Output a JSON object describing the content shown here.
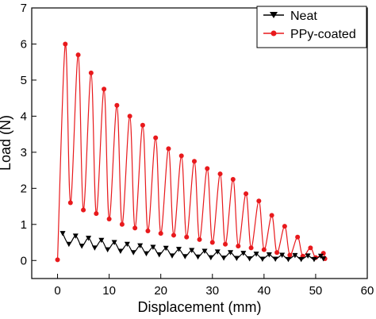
{
  "chart_data": {
    "type": "line",
    "xlabel": "Displacement (mm)",
    "ylabel": "Load (N)",
    "xlim": [
      -5,
      60
    ],
    "ylim": [
      -0.5,
      7
    ],
    "xticks": [
      0,
      10,
      20,
      30,
      40,
      50,
      60
    ],
    "yticks": [
      0,
      1,
      2,
      3,
      4,
      5,
      6,
      7
    ],
    "x_tick_labels": [
      "0",
      "10",
      "20",
      "30",
      "40",
      "50",
      "60"
    ],
    "y_tick_labels": [
      "0",
      "1",
      "2",
      "3",
      "4",
      "5",
      "6",
      "7"
    ],
    "grid": false,
    "legend_position": "top-right",
    "series": [
      {
        "name": "Neat",
        "color": "#000000",
        "marker": "triangle-down",
        "peaks": [
          [
            1.0,
            0.75
          ],
          [
            3.5,
            0.68
          ],
          [
            6.0,
            0.62
          ],
          [
            8.5,
            0.56
          ],
          [
            11.0,
            0.5
          ],
          [
            13.5,
            0.45
          ],
          [
            16.0,
            0.41
          ],
          [
            18.5,
            0.37
          ],
          [
            21.0,
            0.34
          ],
          [
            23.5,
            0.31
          ],
          [
            26.0,
            0.28
          ],
          [
            28.5,
            0.26
          ],
          [
            31.0,
            0.24
          ],
          [
            33.5,
            0.22
          ],
          [
            36.0,
            0.2
          ],
          [
            38.5,
            0.18
          ],
          [
            41.0,
            0.16
          ],
          [
            43.5,
            0.15
          ],
          [
            46.0,
            0.14
          ],
          [
            48.5,
            0.13
          ],
          [
            51.0,
            0.12
          ]
        ],
        "valleys": [
          [
            2.2,
            0.45
          ],
          [
            4.7,
            0.4
          ],
          [
            7.2,
            0.35
          ],
          [
            9.7,
            0.3
          ],
          [
            12.2,
            0.26
          ],
          [
            14.7,
            0.22
          ],
          [
            17.2,
            0.19
          ],
          [
            19.7,
            0.16
          ],
          [
            22.2,
            0.13
          ],
          [
            24.7,
            0.11
          ],
          [
            27.2,
            0.1
          ],
          [
            29.7,
            0.08
          ],
          [
            32.2,
            0.07
          ],
          [
            34.7,
            0.06
          ],
          [
            37.2,
            0.05
          ],
          [
            39.7,
            0.04
          ],
          [
            42.2,
            0.04
          ],
          [
            44.7,
            0.03
          ],
          [
            47.2,
            0.03
          ],
          [
            49.7,
            0.03
          ],
          [
            51.5,
            0.05
          ]
        ]
      },
      {
        "name": "PPy-coated",
        "color": "#e8191c",
        "marker": "circle",
        "start": [
          0.0,
          0.02
        ],
        "peaks": [
          [
            1.5,
            6.0
          ],
          [
            4.0,
            5.7
          ],
          [
            6.5,
            5.2
          ],
          [
            9.0,
            4.75
          ],
          [
            11.5,
            4.3
          ],
          [
            14.0,
            4.0
          ],
          [
            16.5,
            3.75
          ],
          [
            19.0,
            3.4
          ],
          [
            21.5,
            3.1
          ],
          [
            24.0,
            2.9
          ],
          [
            26.5,
            2.75
          ],
          [
            29.0,
            2.55
          ],
          [
            31.5,
            2.4
          ],
          [
            34.0,
            2.25
          ],
          [
            36.5,
            1.85
          ],
          [
            39.0,
            1.65
          ],
          [
            41.5,
            1.25
          ],
          [
            44.0,
            0.95
          ],
          [
            46.5,
            0.65
          ],
          [
            49.0,
            0.35
          ],
          [
            51.5,
            0.2
          ]
        ],
        "valleys": [
          [
            2.5,
            1.6
          ],
          [
            5.0,
            1.4
          ],
          [
            7.5,
            1.3
          ],
          [
            10.0,
            1.15
          ],
          [
            12.5,
            1.0
          ],
          [
            15.0,
            0.9
          ],
          [
            17.5,
            0.82
          ],
          [
            20.0,
            0.75
          ],
          [
            22.5,
            0.7
          ],
          [
            25.0,
            0.65
          ],
          [
            27.5,
            0.58
          ],
          [
            30.0,
            0.5
          ],
          [
            32.5,
            0.45
          ],
          [
            35.0,
            0.4
          ],
          [
            37.5,
            0.35
          ],
          [
            40.0,
            0.3
          ],
          [
            42.5,
            0.22
          ],
          [
            45.0,
            0.15
          ],
          [
            47.5,
            0.12
          ],
          [
            50.0,
            0.08
          ],
          [
            51.8,
            0.05
          ]
        ]
      }
    ]
  }
}
